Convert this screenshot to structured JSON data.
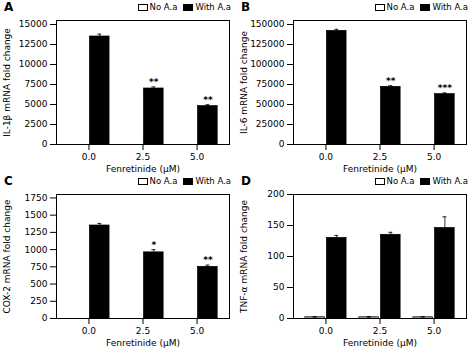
{
  "chart_data": [
    {
      "type": "bar",
      "title": "A",
      "ylabel": "IL-1β mRNA fold change",
      "xlabel": "Fenretinide (μM)",
      "categories": [
        "0.0",
        "2.5",
        "5.0"
      ],
      "series": [
        {
          "name": "No A.a",
          "color": "white",
          "values": [
            0,
            0,
            0
          ],
          "errors": [
            0,
            0,
            0
          ]
        },
        {
          "name": "With A.a",
          "color": "black",
          "values": [
            13500,
            7000,
            4800
          ],
          "errors": [
            300,
            200,
            180
          ]
        }
      ],
      "annotations": [
        {
          "category": "2.5",
          "series": "With A.a",
          "text": "**"
        },
        {
          "category": "5.0",
          "series": "With A.a",
          "text": "**"
        }
      ],
      "ylim": [
        0,
        15500
      ],
      "yticks": [
        0,
        2500,
        5000,
        7500,
        10000,
        12500,
        15000
      ],
      "grid": false,
      "legend": "upper right"
    },
    {
      "type": "bar",
      "title": "B",
      "ylabel": "IL-6 mRNA fold change",
      "xlabel": "Fenretinide (μM)",
      "categories": [
        "0.0",
        "2.5",
        "5.0"
      ],
      "series": [
        {
          "name": "No A.a",
          "color": "white",
          "values": [
            0,
            0,
            0
          ],
          "errors": [
            0,
            0,
            0
          ]
        },
        {
          "name": "With A.a",
          "color": "black",
          "values": [
            142000,
            72000,
            63000
          ],
          "errors": [
            2000,
            1500,
            1500
          ]
        }
      ],
      "annotations": [
        {
          "category": "2.5",
          "series": "With A.a",
          "text": "**"
        },
        {
          "category": "5.0",
          "series": "With A.a",
          "text": "***"
        }
      ],
      "ylim": [
        0,
        155000
      ],
      "yticks": [
        0,
        25000,
        50000,
        75000,
        100000,
        125000,
        150000
      ],
      "grid": false,
      "legend": "upper right"
    },
    {
      "type": "bar",
      "title": "C",
      "ylabel": "COX-2 mRNA fold change",
      "xlabel": "Fenretinide (μM)",
      "categories": [
        "0.0",
        "2.5",
        "5.0"
      ],
      "series": [
        {
          "name": "No A.a",
          "color": "white",
          "values": [
            0,
            0,
            0
          ],
          "errors": [
            0,
            0,
            0
          ]
        },
        {
          "name": "With A.a",
          "color": "black",
          "values": [
            1350,
            960,
            750
          ],
          "errors": [
            30,
            40,
            25
          ]
        }
      ],
      "annotations": [
        {
          "category": "2.5",
          "series": "With A.a",
          "text": "*"
        },
        {
          "category": "5.0",
          "series": "With A.a",
          "text": "**"
        }
      ],
      "ylim": [
        0,
        1800
      ],
      "yticks": [
        0,
        250,
        500,
        750,
        1000,
        1250,
        1500,
        1750
      ],
      "grid": false,
      "legend": "upper right"
    },
    {
      "type": "bar",
      "title": "D",
      "ylabel": "TNF-α mRNA fold change",
      "xlabel": "Fenretinide (μM)",
      "categories": [
        "0.0",
        "2.5",
        "5.0"
      ],
      "series": [
        {
          "name": "No A.a",
          "color": "white",
          "values": [
            2,
            2,
            2
          ],
          "errors": [
            1,
            1,
            1
          ]
        },
        {
          "name": "With A.a",
          "color": "black",
          "values": [
            130,
            135,
            146
          ],
          "errors": [
            4,
            4,
            18
          ]
        }
      ],
      "ylim": [
        0,
        200
      ],
      "yticks": [
        0,
        50,
        100,
        150,
        200
      ],
      "grid": false,
      "legend": "upper right"
    }
  ]
}
